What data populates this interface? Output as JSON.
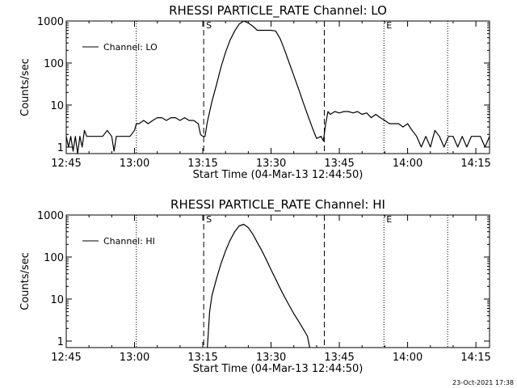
{
  "chart_data": [
    {
      "type": "line",
      "title": "RHESSI PARTICLE_RATE Channel: LO",
      "xlabel": "Start Time (04-Mar-13 12:44:50)",
      "ylabel": "Counts/sec",
      "yscale": "log",
      "ylim": [
        0.7,
        1000
      ],
      "xlim_minutes": [
        0,
        93
      ],
      "x_ticks": [
        0,
        15,
        30,
        45,
        60,
        75,
        90
      ],
      "x_tick_labels": [
        "12:45",
        "13:00",
        "13:15",
        "13:30",
        "13:45",
        "14:00",
        "14:15"
      ],
      "y_ticks": [
        1,
        10,
        100,
        1000
      ],
      "y_tick_labels": [
        "1",
        "10",
        "100",
        "1000"
      ],
      "legend": "Channel: LO",
      "markers": [
        {
          "label": "S",
          "minute": 30.2,
          "style": "dashed"
        },
        {
          "label": "",
          "minute": 56.7,
          "style": "dashed"
        },
        {
          "label": "",
          "minute": 15.4,
          "style": "dotted"
        },
        {
          "label": "E",
          "minute": 69.8,
          "style": "dotted"
        },
        {
          "label": "",
          "minute": 83.8,
          "style": "dotted"
        }
      ],
      "series": [
        {
          "name": "Channel: LO",
          "x": [
            0,
            0.5,
            1,
            1.5,
            2,
            2.5,
            3,
            3.5,
            4,
            4.5,
            5,
            6,
            7,
            8,
            9,
            10,
            10.5,
            11,
            11.5,
            12,
            12.5,
            13,
            13.5,
            14,
            15,
            15.4,
            16,
            17,
            18,
            19,
            20,
            21,
            22,
            23,
            24,
            25,
            26,
            27,
            28,
            29,
            29.5,
            30,
            30.5,
            31,
            32,
            33,
            34,
            35,
            36,
            37,
            38,
            39,
            40,
            41,
            42,
            43,
            44,
            45,
            46,
            47,
            48,
            49,
            50,
            51,
            52,
            53,
            54,
            55,
            56,
            56.5,
            57,
            57.5,
            58,
            59,
            60,
            61,
            62,
            63,
            64,
            65,
            66,
            67,
            68,
            69,
            70,
            71,
            72,
            73,
            74,
            75,
            76,
            77,
            78,
            79,
            80,
            81,
            82,
            83,
            84,
            85,
            86,
            87,
            88,
            89,
            90,
            91,
            92,
            93
          ],
          "values": [
            1.8,
            1,
            1.8,
            0.8,
            1.8,
            0.7,
            1.8,
            1,
            2.5,
            1.8,
            1.8,
            1.8,
            1.8,
            1.8,
            2.5,
            1.8,
            0.8,
            1.8,
            1.8,
            1.8,
            1.8,
            1.8,
            1.8,
            1.8,
            2.5,
            3.6,
            3.6,
            4.3,
            3.6,
            4.3,
            5,
            5,
            4.3,
            5,
            5,
            4.3,
            5,
            4.3,
            4.3,
            3.6,
            2,
            1.8,
            1.8,
            4,
            12,
            30,
            80,
            180,
            350,
            580,
            850,
            1000,
            900,
            750,
            600,
            600,
            600,
            600,
            580,
            380,
            200,
            100,
            50,
            25,
            12,
            6,
            3,
            1.6,
            1.8,
            1.4,
            3.6,
            7,
            6,
            7,
            6.5,
            7,
            7,
            6.5,
            7,
            6,
            6.5,
            5,
            6,
            5,
            4.3,
            3.6,
            3.6,
            3.6,
            3,
            3.6,
            2.5,
            1.8,
            1,
            1.8,
            1,
            2.5,
            1.8,
            1,
            1.8,
            1.8,
            1,
            1.8,
            1,
            1.8,
            1.8,
            1.8,
            1,
            1.8
          ]
        }
      ]
    },
    {
      "type": "line",
      "title": "RHESSI PARTICLE_RATE Channel: HI",
      "xlabel": "Start Time (04-Mar-13 12:44:50)",
      "ylabel": "Counts/sec",
      "yscale": "log",
      "ylim": [
        0.7,
        1000
      ],
      "xlim_minutes": [
        0,
        93
      ],
      "x_ticks": [
        0,
        15,
        30,
        45,
        60,
        75,
        90
      ],
      "x_tick_labels": [
        "12:45",
        "13:00",
        "13:15",
        "13:30",
        "13:45",
        "14:00",
        "14:15"
      ],
      "y_ticks": [
        1,
        10,
        100,
        1000
      ],
      "y_tick_labels": [
        "1",
        "10",
        "100",
        "1000"
      ],
      "legend": "Channel: HI",
      "markers": [
        {
          "label": "S",
          "minute": 30.2,
          "style": "dashed"
        },
        {
          "label": "",
          "minute": 56.7,
          "style": "dashed"
        },
        {
          "label": "",
          "minute": 15.4,
          "style": "dotted"
        },
        {
          "label": "E",
          "minute": 69.8,
          "style": "dotted"
        },
        {
          "label": "",
          "minute": 83.8,
          "style": "dotted"
        }
      ],
      "series": [
        {
          "name": "Channel: HI",
          "x": [
            31,
            31.5,
            32,
            33,
            34,
            35,
            36,
            37,
            38,
            39,
            40,
            41,
            42,
            43,
            44,
            45,
            46,
            47,
            48,
            49,
            50,
            51,
            52,
            53,
            53.5
          ],
          "values": [
            0.7,
            5,
            12,
            30,
            70,
            140,
            250,
            400,
            550,
            600,
            500,
            350,
            220,
            140,
            85,
            50,
            30,
            18,
            11,
            7,
            4.5,
            3,
            2,
            1.3,
            0.7
          ]
        }
      ]
    }
  ],
  "footer": {
    "date": "23-Oct-2021 17:38"
  }
}
